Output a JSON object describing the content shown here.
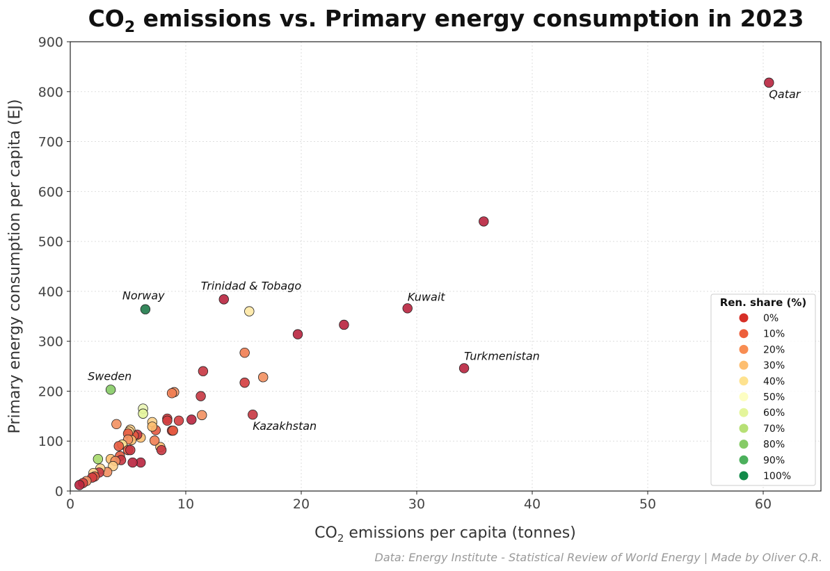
{
  "chart_data": {
    "type": "scatter",
    "title_main": "CO",
    "title_sub": "2",
    "title_rest": " emissions vs. Primary energy consumption in 2023",
    "xlabel_main": "CO",
    "xlabel_sub": "2",
    "xlabel_rest": " emissions per capita (tonnes)",
    "ylabel": "Primary energy consumption per capita (EJ)",
    "xlim": [
      0,
      65
    ],
    "ylim": [
      0,
      900
    ],
    "x_ticks": [
      0,
      10,
      20,
      30,
      40,
      50,
      60
    ],
    "y_ticks": [
      0,
      100,
      200,
      300,
      400,
      500,
      600,
      700,
      800,
      900
    ],
    "grid": true,
    "legend": {
      "title": "Ren. share (%)",
      "position": "lower-right",
      "entries": [
        {
          "label": "0%",
          "color": "#d62f27"
        },
        {
          "label": "10%",
          "color": "#ed5f3c"
        },
        {
          "label": "20%",
          "color": "#f88d52"
        },
        {
          "label": "30%",
          "color": "#fdbe70"
        },
        {
          "label": "40%",
          "color": "#fee28f"
        },
        {
          "label": "50%",
          "color": "#fdfec2"
        },
        {
          "label": "60%",
          "color": "#e4f59b"
        },
        {
          "label": "70%",
          "color": "#b7e075"
        },
        {
          "label": "80%",
          "color": "#86cb66"
        },
        {
          "label": "90%",
          "color": "#4cb05c"
        },
        {
          "label": "100%",
          "color": "#128a49"
        }
      ]
    },
    "points": [
      {
        "x": 60.5,
        "y": 818,
        "c": "#b8243e",
        "label": "Qatar"
      },
      {
        "x": 35.8,
        "y": 540,
        "c": "#b8243e"
      },
      {
        "x": 29.2,
        "y": 366,
        "c": "#b8243e",
        "label": "Kuwait"
      },
      {
        "x": 34.1,
        "y": 246,
        "c": "#b8243e",
        "label": "Turkmenistan"
      },
      {
        "x": 23.7,
        "y": 333,
        "c": "#b8243e"
      },
      {
        "x": 19.7,
        "y": 314,
        "c": "#b8243e"
      },
      {
        "x": 13.3,
        "y": 384,
        "c": "#b8243e",
        "label": "Trinidad & Tobago"
      },
      {
        "x": 15.5,
        "y": 360,
        "c": "#fee8a5"
      },
      {
        "x": 15.1,
        "y": 277,
        "c": "#f07d52"
      },
      {
        "x": 16.7,
        "y": 228,
        "c": "#f29060"
      },
      {
        "x": 15.1,
        "y": 217,
        "c": "#d33d3f"
      },
      {
        "x": 15.8,
        "y": 153,
        "c": "#c73641",
        "label": "Kazakhstan"
      },
      {
        "x": 11.5,
        "y": 240,
        "c": "#c73641"
      },
      {
        "x": 11.3,
        "y": 190,
        "c": "#c73641"
      },
      {
        "x": 11.4,
        "y": 152,
        "c": "#f29060"
      },
      {
        "x": 6.5,
        "y": 364,
        "c": "#1f7a4a",
        "label": "Norway"
      },
      {
        "x": 3.5,
        "y": 203,
        "c": "#86cb66",
        "label": "Sweden"
      },
      {
        "x": 10.5,
        "y": 143,
        "c": "#b8243e"
      },
      {
        "x": 9.4,
        "y": 141,
        "c": "#d33d3f"
      },
      {
        "x": 9.0,
        "y": 198,
        "c": "#f29060"
      },
      {
        "x": 8.8,
        "y": 196,
        "c": "#f07d52"
      },
      {
        "x": 8.4,
        "y": 145,
        "c": "#d33d3f"
      },
      {
        "x": 8.4,
        "y": 141,
        "c": "#d33d3f"
      },
      {
        "x": 8.8,
        "y": 121,
        "c": "#d33d3f"
      },
      {
        "x": 8.9,
        "y": 121,
        "c": "#e65a40"
      },
      {
        "x": 7.8,
        "y": 88,
        "c": "#fdbe70"
      },
      {
        "x": 7.9,
        "y": 82,
        "c": "#c73641"
      },
      {
        "x": 7.3,
        "y": 101,
        "c": "#f07d52"
      },
      {
        "x": 6.3,
        "y": 165,
        "c": "#eaf5b5"
      },
      {
        "x": 6.3,
        "y": 155,
        "c": "#e4f59b"
      },
      {
        "x": 7.1,
        "y": 138,
        "c": "#fdd08a"
      },
      {
        "x": 7.4,
        "y": 122,
        "c": "#e65a40"
      },
      {
        "x": 7.1,
        "y": 129,
        "c": "#fdbe70"
      },
      {
        "x": 6.1,
        "y": 107,
        "c": "#fdbe70"
      },
      {
        "x": 5.8,
        "y": 113,
        "c": "#c73641"
      },
      {
        "x": 5.5,
        "y": 111,
        "c": "#e65a40"
      },
      {
        "x": 5.2,
        "y": 123,
        "c": "#fdd08a"
      },
      {
        "x": 5.1,
        "y": 119,
        "c": "#fdd08a"
      },
      {
        "x": 5.0,
        "y": 115,
        "c": "#e65a40"
      },
      {
        "x": 5.3,
        "y": 102,
        "c": "#fdbe70"
      },
      {
        "x": 5.0,
        "y": 103,
        "c": "#f29060"
      },
      {
        "x": 4.0,
        "y": 134,
        "c": "#f29060"
      },
      {
        "x": 4.5,
        "y": 93,
        "c": "#fee28f"
      },
      {
        "x": 4.2,
        "y": 90,
        "c": "#e65a40"
      },
      {
        "x": 5.0,
        "y": 82,
        "c": "#e65a40"
      },
      {
        "x": 5.2,
        "y": 82,
        "c": "#c73641"
      },
      {
        "x": 6.1,
        "y": 57,
        "c": "#b8243e"
      },
      {
        "x": 5.4,
        "y": 57,
        "c": "#b8243e"
      },
      {
        "x": 4.3,
        "y": 70,
        "c": "#e65a40"
      },
      {
        "x": 4.4,
        "y": 62,
        "c": "#c73641"
      },
      {
        "x": 3.5,
        "y": 64,
        "c": "#fdbe70"
      },
      {
        "x": 3.9,
        "y": 60,
        "c": "#f29060"
      },
      {
        "x": 3.7,
        "y": 50,
        "c": "#fdd08a"
      },
      {
        "x": 3.2,
        "y": 38,
        "c": "#f29060"
      },
      {
        "x": 2.6,
        "y": 45,
        "c": "#fdd08a"
      },
      {
        "x": 2.4,
        "y": 64,
        "c": "#a6d96a"
      },
      {
        "x": 2.5,
        "y": 37,
        "c": "#c73641"
      },
      {
        "x": 2.0,
        "y": 36,
        "c": "#fdd08a"
      },
      {
        "x": 2.1,
        "y": 29,
        "c": "#e65a40"
      },
      {
        "x": 1.9,
        "y": 27,
        "c": "#d33d3f"
      },
      {
        "x": 1.4,
        "y": 20,
        "c": "#f29060"
      },
      {
        "x": 1.1,
        "y": 16,
        "c": "#d33d3f"
      },
      {
        "x": 0.8,
        "y": 12,
        "c": "#b8243e"
      }
    ]
  },
  "source_note": "Data: Energy Institute - Statistical Review of World Energy | Made by Oliver Q.R."
}
